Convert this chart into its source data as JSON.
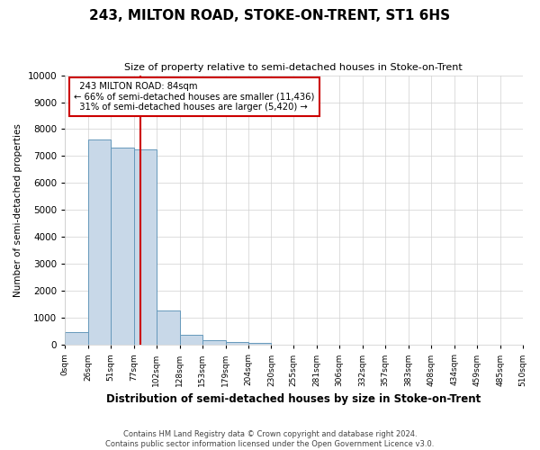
{
  "title": "243, MILTON ROAD, STOKE-ON-TRENT, ST1 6HS",
  "subtitle": "Size of property relative to semi-detached houses in Stoke-on-Trent",
  "xlabel": "Distribution of semi-detached houses by size in Stoke-on-Trent",
  "ylabel": "Number of semi-detached properties",
  "footer_line1": "Contains HM Land Registry data © Crown copyright and database right 2024.",
  "footer_line2": "Contains public sector information licensed under the Open Government Licence v3.0.",
  "bin_labels": [
    "0sqm",
    "26sqm",
    "51sqm",
    "77sqm",
    "102sqm",
    "128sqm",
    "153sqm",
    "179sqm",
    "204sqm",
    "230sqm",
    "255sqm",
    "281sqm",
    "306sqm",
    "332sqm",
    "357sqm",
    "383sqm",
    "408sqm",
    "434sqm",
    "459sqm",
    "485sqm",
    "510sqm"
  ],
  "bin_edges": [
    0,
    26,
    51,
    77,
    102,
    128,
    153,
    179,
    204,
    230,
    255,
    281,
    306,
    332,
    357,
    383,
    408,
    434,
    459,
    485,
    510
  ],
  "bar_values": [
    480,
    7600,
    7300,
    7250,
    1280,
    360,
    160,
    110,
    60,
    0,
    0,
    0,
    0,
    0,
    0,
    0,
    0,
    0,
    0,
    0
  ],
  "bar_color": "#c8d8e8",
  "bar_edge_color": "#6699bb",
  "property_sqm": 84,
  "property_label": "243 MILTON ROAD: 84sqm",
  "pct_smaller": 66,
  "n_smaller": 11436,
  "pct_larger": 31,
  "n_larger": 5420,
  "red_line_color": "#cc0000",
  "annotation_box_color": "#ffffff",
  "annotation_box_edge": "#cc0000",
  "ylim": [
    0,
    10000
  ],
  "yticks": [
    0,
    1000,
    2000,
    3000,
    4000,
    5000,
    6000,
    7000,
    8000,
    9000,
    10000
  ],
  "grid_color": "#d0d0d0",
  "background_color": "#ffffff"
}
